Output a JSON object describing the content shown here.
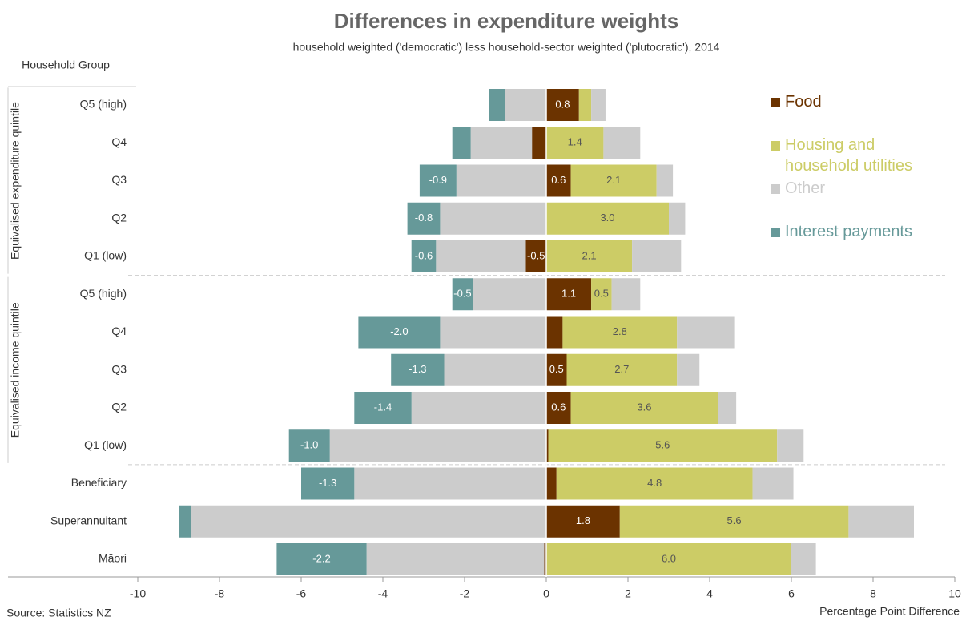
{
  "chart_data": {
    "type": "diverging_bar",
    "title": "Differences in expenditure weights",
    "subtitle": "household weighted ('democratic') less household-sector weighted ('plutocratic'), 2014",
    "category_header": "Household Group",
    "x_label": "Percentage Point Difference",
    "source": "Source: Statistics NZ",
    "categories": [
      "Q5 (high)",
      "Q4",
      "Q3",
      "Q2",
      "Q1 (low)",
      "Q5 (high)",
      "Q4",
      "Q3",
      "Q2",
      "Q1 (low)",
      "Beneficiary",
      "Superannuitant",
      "Māori"
    ],
    "groups": [
      {
        "name": "Equivalised expenditure quintile",
        "start": 0,
        "end": 4
      },
      {
        "name": "Equivalised income quintile",
        "start": 5,
        "end": 9
      }
    ],
    "series": [
      {
        "name": "Food",
        "color": "#6b3300",
        "label_color": "#ffffff",
        "values": [
          0.8,
          -0.35,
          0.6,
          0,
          -0.5,
          1.1,
          0.4,
          0.5,
          0.6,
          0.05,
          0.25,
          1.8,
          -0.05
        ],
        "value_labels": [
          "0.8",
          null,
          "0.6",
          null,
          "-0.5",
          "1.1",
          null,
          "0.5",
          "0.6",
          null,
          null,
          "1.8",
          null
        ]
      },
      {
        "name": "Housing and household utilities",
        "color": "#cccc66",
        "label_color": "#555555",
        "values": [
          0.3,
          1.4,
          2.1,
          3.0,
          2.1,
          0.5,
          2.8,
          2.7,
          3.6,
          5.6,
          4.8,
          5.6,
          6.0
        ],
        "value_labels": [
          null,
          "1.4",
          "2.1",
          "3.0",
          "2.1",
          "0.5",
          "2.8",
          "2.7",
          "3.6",
          "5.6",
          "4.8",
          "5.6",
          "6.0"
        ]
      },
      {
        "name": "Other",
        "color": "#cccccc",
        "values": [
          0.35,
          0.9,
          0.4,
          0.4,
          1.2,
          0.7,
          1.4,
          0.55,
          0.45,
          0.65,
          1.0,
          1.6,
          0.6
        ],
        "negative_values": [
          -1.0,
          -1.5,
          -2.2,
          -2.6,
          -2.2,
          -1.8,
          -2.6,
          -2.5,
          -3.3,
          -5.3,
          -4.7,
          -8.7,
          -4.35
        ]
      },
      {
        "name": "Interest payments",
        "color": "#669999",
        "label_color": "#ffffff",
        "values": [
          -0.4,
          -0.45,
          -0.9,
          -0.8,
          -0.6,
          -0.5,
          -2.0,
          -1.3,
          -1.4,
          -1.0,
          -1.3,
          -0.3,
          -2.2
        ],
        "value_labels": [
          null,
          null,
          "-0.9",
          "-0.8",
          "-0.6",
          "-0.5",
          "-2.0",
          "-1.3",
          "-1.4",
          "-1.0",
          "-1.3",
          null,
          "-2.2"
        ]
      }
    ],
    "xlim": [
      -10,
      10
    ],
    "xticks": [
      -10,
      -8,
      -6,
      -4,
      -2,
      0,
      2,
      4,
      6,
      8,
      10
    ]
  }
}
